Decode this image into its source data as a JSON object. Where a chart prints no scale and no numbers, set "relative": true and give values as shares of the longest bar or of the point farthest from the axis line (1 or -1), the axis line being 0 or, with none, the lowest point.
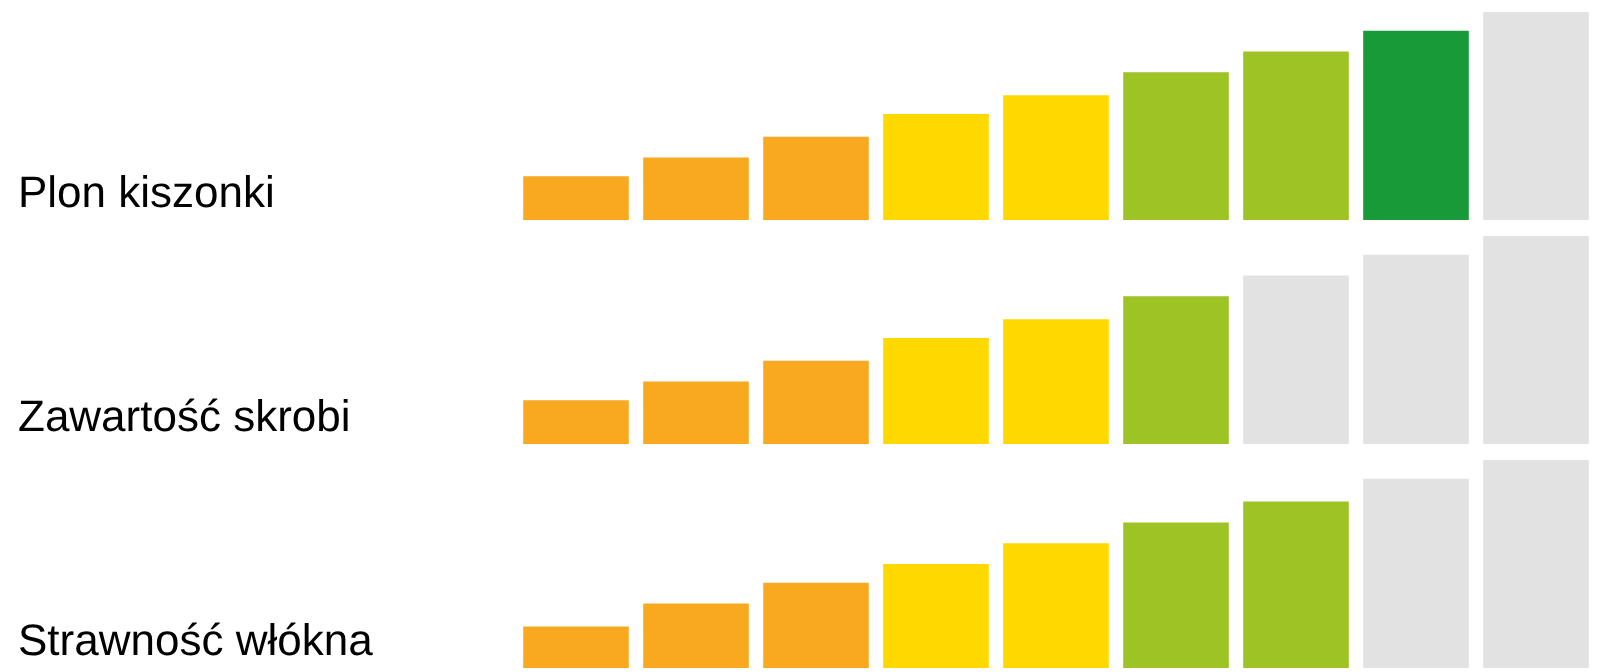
{
  "chart_data": [
    {
      "type": "bar",
      "title": "Plon kiszonki",
      "relative": true,
      "categories": [
        null,
        null,
        null,
        null,
        null,
        null,
        null,
        null,
        null
      ],
      "values": [
        0.21,
        0.3,
        0.4,
        0.51,
        0.6,
        0.71,
        0.81,
        0.91,
        1
      ],
      "colors": [
        "#f8a920",
        "#f8a920",
        "#f8a920",
        "#ffd800",
        "#ffd800",
        "#9dc324",
        "#9dc324",
        "#199a38",
        "#e2e2e2"
      ]
    },
    {
      "type": "bar",
      "title": "Zawartość skrobi",
      "relative": true,
      "categories": [
        null,
        null,
        null,
        null,
        null,
        null,
        null,
        null,
        null
      ],
      "values": [
        0.21,
        0.3,
        0.4,
        0.51,
        0.6,
        0.71,
        0.81,
        0.91,
        1
      ],
      "colors": [
        "#f8a920",
        "#f8a920",
        "#f8a920",
        "#ffd800",
        "#ffd800",
        "#9dc324",
        "#e2e2e2",
        "#e2e2e2",
        "#e2e2e2"
      ]
    },
    {
      "type": "bar",
      "title": "Strawność włókna",
      "relative": true,
      "categories": [
        null,
        null,
        null,
        null,
        null,
        null,
        null,
        null,
        null
      ],
      "values": [
        0.2,
        0.31,
        0.41,
        0.5,
        0.6,
        0.7,
        0.8,
        0.91,
        1
      ],
      "colors": [
        "#f8a920",
        "#f8a920",
        "#f8a920",
        "#ffd800",
        "#ffd800",
        "#9dc324",
        "#9dc324",
        "#e2e2e2",
        "#e2e2e2"
      ]
    }
  ]
}
